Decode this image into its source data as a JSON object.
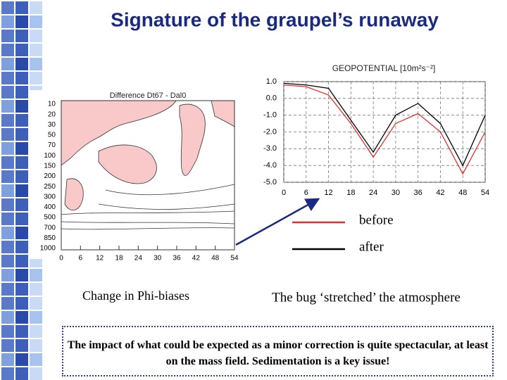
{
  "title": "Signature of the graupel’s runaway",
  "chart_data": [
    {
      "type": "line",
      "title": "GEOPOTENTIAL [10m²s⁻²]",
      "x": [
        0,
        6,
        12,
        18,
        24,
        30,
        36,
        42,
        48,
        54
      ],
      "xlim": [
        0,
        54
      ],
      "xticks": [
        0,
        6,
        12,
        18,
        24,
        30,
        36,
        42,
        48,
        54
      ],
      "ylim": [
        -5,
        1
      ],
      "yticks": [
        {
          "value": 1,
          "label": "1.0"
        },
        {
          "value": 0,
          "label": "0.0"
        },
        {
          "value": -1,
          "label": "-1.0"
        },
        {
          "value": -2,
          "label": "-2.0"
        },
        {
          "value": -3,
          "label": "-3.0"
        },
        {
          "value": -4,
          "label": "-4.0"
        },
        {
          "value": -5,
          "label": "-5.0"
        }
      ],
      "grid": true,
      "series": [
        {
          "name": "before",
          "color": "#e03030",
          "values": [
            0.8,
            0.7,
            0.2,
            -1.5,
            -3.5,
            -1.5,
            -0.9,
            -2.0,
            -4.5,
            -2.0
          ]
        },
        {
          "name": "after",
          "color": "#000000",
          "values": [
            0.9,
            0.8,
            0.6,
            -1.3,
            -3.2,
            -1.0,
            -0.3,
            -1.5,
            -4.0,
            -1.0
          ]
        }
      ]
    },
    {
      "type": "contour",
      "title": "Difference Dt67 - Dal0",
      "xlim": [
        0,
        54
      ],
      "xticks": [
        0,
        6,
        12,
        18,
        24,
        30,
        36,
        42,
        48,
        54
      ],
      "levels": [
        "10",
        "20",
        "30",
        "50",
        "70",
        "100",
        "150",
        "200",
        "250",
        "300",
        "400",
        "500",
        "700",
        "850",
        "1000"
      ],
      "caption": "Change in Phi-biases"
    }
  ],
  "arrow_caption": "The bug ‘stretched’ the atmosphere",
  "note": "The impact of what could be expected as a minor correction is quite spectacular, at least on the mass field. Sedimentation is a key issue!"
}
